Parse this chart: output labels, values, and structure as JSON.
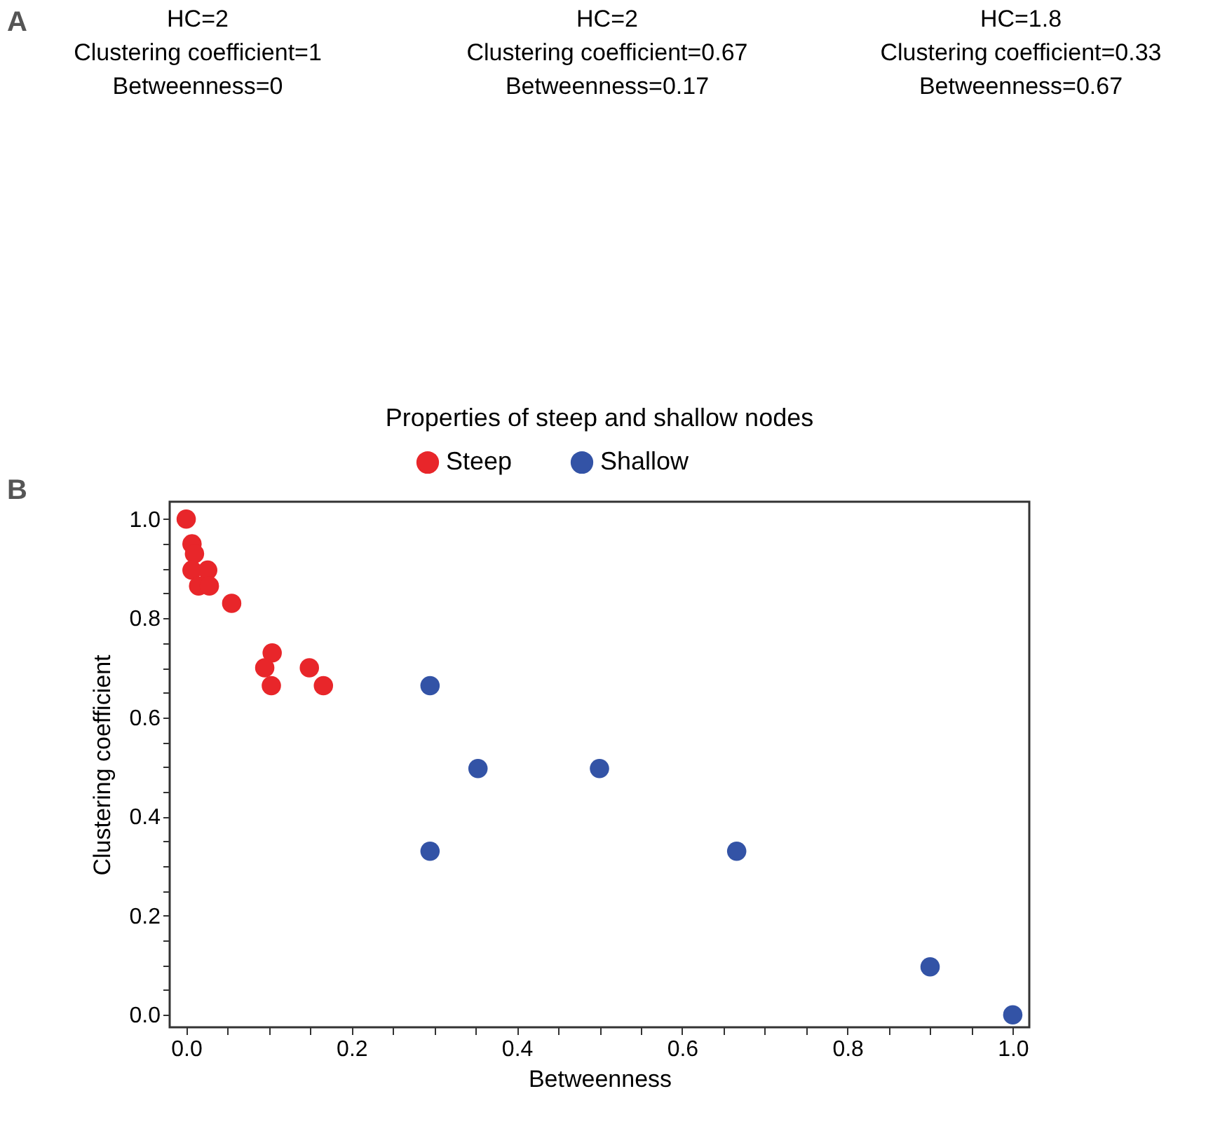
{
  "chart_data": {
    "type": "scatter",
    "title": "Properties of steep and shallow nodes",
    "xlabel": "Betweenness",
    "ylabel": "Clustering coefficient",
    "annotations": [
      "A",
      "HC=2",
      "Clustering coefficient=1",
      "Betweenness=0",
      "HC=2",
      "Clustering coefficient=0.67",
      "Betweenness=0.17",
      "HC=1.8",
      "Clustering coefficient=0.33",
      "Betweenness=0.67",
      "B"
    ],
    "marker": "circle",
    "legend": "top",
    "grid": false,
    "xlim": [
      -0.02,
      1.02
    ],
    "ylim": [
      -0.025,
      1.035
    ],
    "xticks": [
      {
        "value": 0,
        "label": "0.0"
      },
      {
        "value": 0.05,
        "label": null
      },
      {
        "value": 0.1,
        "label": null
      },
      {
        "value": 0.15,
        "label": null
      },
      {
        "value": 0.2,
        "label": "0.2"
      },
      {
        "value": 0.25,
        "label": null
      },
      {
        "value": 0.3,
        "label": null
      },
      {
        "value": 0.35,
        "label": null
      },
      {
        "value": 0.4,
        "label": "0.4"
      },
      {
        "value": 0.45,
        "label": null
      },
      {
        "value": 0.5,
        "label": null
      },
      {
        "value": 0.55,
        "label": null
      },
      {
        "value": 0.6,
        "label": "0.6"
      },
      {
        "value": 0.65,
        "label": null
      },
      {
        "value": 0.7,
        "label": null
      },
      {
        "value": 0.75,
        "label": null
      },
      {
        "value": 0.8,
        "label": "0.8"
      },
      {
        "value": 0.85,
        "label": null
      },
      {
        "value": 0.9,
        "label": null
      },
      {
        "value": 0.95,
        "label": null
      },
      {
        "value": 1,
        "label": "1.0"
      }
    ],
    "yticks": [
      {
        "value": 0,
        "label": "0.0"
      },
      {
        "value": 0.05,
        "label": null
      },
      {
        "value": 0.1,
        "label": null
      },
      {
        "value": 0.15,
        "label": null
      },
      {
        "value": 0.2,
        "label": "0.2"
      },
      {
        "value": 0.25,
        "label": null
      },
      {
        "value": 0.3,
        "label": null
      },
      {
        "value": 0.35,
        "label": null
      },
      {
        "value": 0.4,
        "label": "0.4"
      },
      {
        "value": 0.45,
        "label": null
      },
      {
        "value": 0.5,
        "label": null
      },
      {
        "value": 0.55,
        "label": null
      },
      {
        "value": 0.6,
        "label": "0.6"
      },
      {
        "value": 0.65,
        "label": null
      },
      {
        "value": 0.7,
        "label": null
      },
      {
        "value": 0.75,
        "label": null
      },
      {
        "value": 0.8,
        "label": "0.8"
      },
      {
        "value": 0.85,
        "label": null
      },
      {
        "value": 0.9,
        "label": null
      },
      {
        "value": 0.95,
        "label": null
      },
      {
        "value": 1,
        "label": "1.0"
      }
    ],
    "series": [
      {
        "name": "Steep",
        "color": "#e8262a",
        "x": [
          0,
          0.007,
          0.01,
          0.007,
          0.026,
          0.015,
          0.028,
          0.055,
          0.104,
          0.095,
          0.103,
          0.149,
          0.166
        ],
        "values": [
          1,
          0.95,
          0.93,
          0.897,
          0.897,
          0.865,
          0.865,
          0.83,
          0.73,
          0.7,
          0.664,
          0.7,
          0.664
        ]
      },
      {
        "name": "Shallow",
        "color": "#3353a6",
        "x": [
          0.295,
          0.353,
          0.5,
          0.295,
          0.666,
          0.9,
          1
        ],
        "values": [
          0.664,
          0.497,
          0.497,
          0.33,
          0.33,
          0.097,
          0
        ]
      }
    ]
  }
}
